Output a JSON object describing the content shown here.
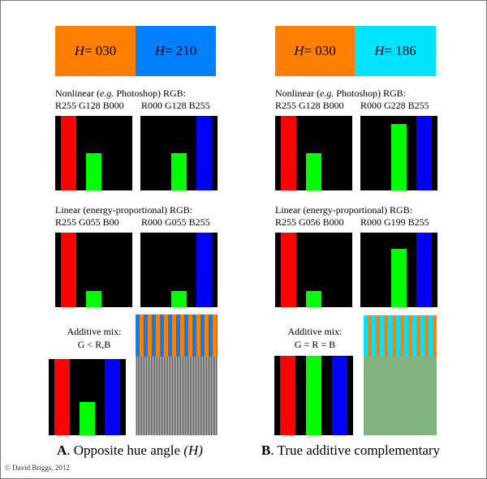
{
  "colors": {
    "orange": "#ff8000",
    "blue210": "#0080ff",
    "cyan186": "#00e4ff",
    "red": "#ff0000",
    "green": "#00ff00",
    "blue": "#0000ff",
    "black": "#000000",
    "grey_mix": "#888888",
    "green_mix": "#7fb27f"
  },
  "panel_a": {
    "swatch_left": {
      "h_symbol": "H",
      "eq": " = 030"
    },
    "swatch_right": {
      "h_symbol": "H",
      "eq": " = 210"
    },
    "nonlinear_label_pre": "Nonlinear (",
    "nonlinear_label_eg": "e.g.",
    "nonlinear_label_post": " Photoshop) RGB:",
    "nonlinear_left_rgb": "R255 G128 B000",
    "nonlinear_right_rgb": "R000 G128 B255",
    "linear_label": "Linear (energy-proportional) RGB:",
    "linear_left_rgb": "R255 G055 B00",
    "linear_right_rgb": "R000 G055 B255",
    "mix_label_1": "Additive mix:",
    "mix_label_2": "G < R,B",
    "caption_letter": "A",
    "caption_text": ". Opposite hue angle ",
    "caption_h": "(H)",
    "bars_nonlinear_left": {
      "R": 255,
      "G": 128,
      "B": 0
    },
    "bars_nonlinear_right": {
      "R": 0,
      "G": 128,
      "B": 255
    },
    "bars_linear_left": {
      "R": 255,
      "G": 55,
      "B": 0
    },
    "bars_linear_right": {
      "R": 0,
      "G": 55,
      "B": 255
    },
    "bars_mix": {
      "R": 255,
      "G": 110,
      "B": 255
    }
  },
  "panel_b": {
    "swatch_left": {
      "h_symbol": "H",
      "eq": " = 030"
    },
    "swatch_right": {
      "h_symbol": "H",
      "eq": " = 186"
    },
    "nonlinear_label_pre": "Nonlinear (",
    "nonlinear_label_eg": "e.g.",
    "nonlinear_label_post": " Photoshop) RGB:",
    "nonlinear_left_rgb": "R255 G128 B000",
    "nonlinear_right_rgb": "R000 G228 B255",
    "linear_label": "Linear (energy-proportional) RGB:",
    "linear_left_rgb": "R255 G056 B000",
    "linear_right_rgb": "R000 G199 B255",
    "mix_label_1": "Additive mix:",
    "mix_label_2": "G = R = B",
    "caption_letter": "B",
    "caption_text": ". True additive complementary",
    "bars_nonlinear_left": {
      "R": 255,
      "G": 128,
      "B": 0
    },
    "bars_nonlinear_right": {
      "R": 0,
      "G": 228,
      "B": 255
    },
    "bars_linear_left": {
      "R": 255,
      "G": 56,
      "B": 0
    },
    "bars_linear_right": {
      "R": 0,
      "G": 199,
      "B": 255
    },
    "bars_mix": {
      "R": 255,
      "G": 255,
      "B": 255
    }
  },
  "copyright": "© David Briggs, 2012"
}
